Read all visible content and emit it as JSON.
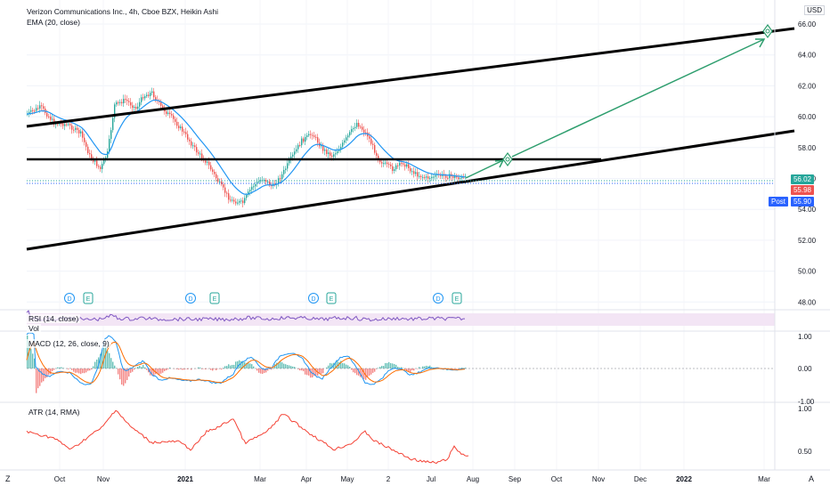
{
  "header": {
    "title": "Verizon Communications Inc., 4h, Cboe BZX, Heikin Ashi",
    "indicator": "EMA (20, close)",
    "currency": "USD"
  },
  "price_scale": {
    "ticks": [
      "66.00",
      "64.00",
      "62.00",
      "60.00",
      "58.00",
      "56.00",
      "54.00",
      "52.00",
      "50.00",
      "48.00"
    ],
    "labels": {
      "last": "56.02",
      "close": "55.98",
      "post": "55.90",
      "post_label": "Post"
    },
    "colors": {
      "last": "#26a69a",
      "close": "#ef5350",
      "post": "#2962ff"
    }
  },
  "time_scale": {
    "ticks": [
      "Oct",
      "Nov",
      "2021",
      "Mar",
      "Apr",
      "May",
      "2",
      "Jul",
      "Aug",
      "Sep",
      "Oct",
      "Nov",
      "Dec",
      "2022",
      "Mar"
    ],
    "left_corner": "Z",
    "right_corner": "A"
  },
  "events": [
    {
      "type": "D"
    },
    {
      "type": "E"
    },
    {
      "type": "D"
    },
    {
      "type": "E"
    },
    {
      "type": "D"
    },
    {
      "type": "E"
    },
    {
      "type": "D"
    },
    {
      "type": "E"
    }
  ],
  "panes": {
    "rsi": {
      "label": "RSI (14, close)",
      "sublabel": "Vol"
    },
    "macd": {
      "label": "MACD (12, 26, close, 9)",
      "ticks": [
        "1.00",
        "0.00",
        "-1.00"
      ]
    },
    "atr": {
      "label": "ATR (14, RMA)",
      "ticks": [
        "1.00",
        "0.50"
      ]
    }
  },
  "colors": {
    "up": "#26a69a",
    "down": "#ef5350",
    "ema": "#2196f3",
    "rsi": "#7e57c2",
    "rsi_band": "#f3e5f5",
    "macd": "#2196f3",
    "signal": "#ff6d00",
    "atr": "#f44336",
    "arrow": "#2e9e6e",
    "trendline": "#000000"
  }
}
